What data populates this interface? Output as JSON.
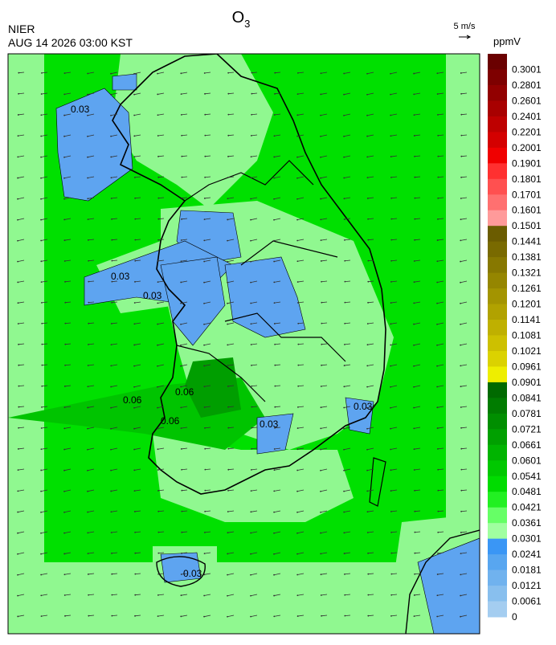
{
  "header": {
    "title": {
      "base": "O",
      "sub": "3"
    },
    "agency": "NIER",
    "timestamp": "AUG 14 2026 03:00 KST",
    "wind_scale": "5 m/s"
  },
  "colorbar": {
    "unit": "ppmV",
    "labels": [
      "0.3001",
      "0.2801",
      "0.2601",
      "0.2401",
      "0.2201",
      "0.2001",
      "0.1901",
      "0.1801",
      "0.1701",
      "0.1601",
      "0.1501",
      "0.1441",
      "0.1381",
      "0.1321",
      "0.1261",
      "0.1201",
      "0.1141",
      "0.1081",
      "0.1021",
      "0.0961",
      "0.0901",
      "0.0841",
      "0.0781",
      "0.0721",
      "0.0661",
      "0.0601",
      "0.0541",
      "0.0481",
      "0.0421",
      "0.0361",
      "0.0301",
      "0.0241",
      "0.0181",
      "0.0121",
      "0.0061",
      "0"
    ],
    "colors": [
      "#6a0000",
      "#7e0000",
      "#920000",
      "#a80000",
      "#be0000",
      "#d40000",
      "#f00000",
      "#ff3030",
      "#ff5050",
      "#ff7070",
      "#ff9a9a",
      "#6b5c00",
      "#796a00",
      "#877800",
      "#958600",
      "#a39400",
      "#b1a200",
      "#bfb000",
      "#cdc000",
      "#dbd200",
      "#eeee00",
      "#006a00",
      "#007c00",
      "#008e00",
      "#00a000",
      "#00b400",
      "#00c800",
      "#00dc00",
      "#22f022",
      "#66ff66",
      "#a0ffa0",
      "#3a96f5",
      "#58a6f0",
      "#70b2ee",
      "#88bfee",
      "#a4cdf0"
    ]
  },
  "contour_labels": [
    "0.03",
    "0.03",
    "0.03",
    "0.03",
    "0.06",
    "0.06",
    "0.06",
    "0.03",
    "0.03"
  ]
}
